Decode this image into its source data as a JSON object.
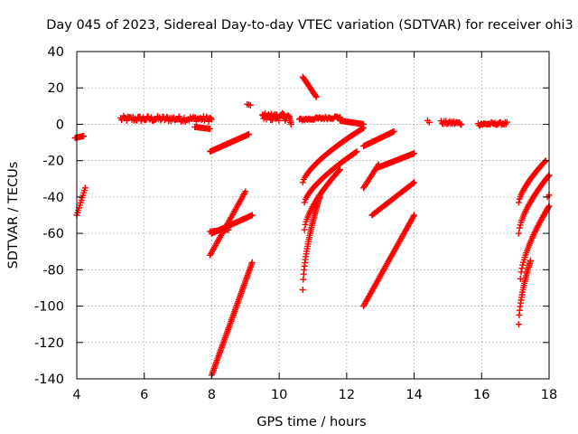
{
  "chart_data": {
    "type": "scatter",
    "title": "Day 045 of 2023, Sidereal Day-to-day VTEC variation (SDTVAR) for receiver ohi3",
    "xlabel": "GPS time / hours",
    "ylabel": "SDTVAR / TECUs",
    "xlim": [
      4,
      18
    ],
    "ylim": [
      -140,
      40
    ],
    "xticks": [
      4,
      6,
      8,
      10,
      12,
      14,
      16,
      18
    ],
    "yticks": [
      -140,
      -120,
      -100,
      -80,
      -60,
      -40,
      -20,
      0,
      20,
      40
    ],
    "grid": true,
    "marker": "plus",
    "color": "#ff0000",
    "segments": [
      {
        "x0": 3.95,
        "y0": -7.5,
        "x1": 4.2,
        "y1": -6.5,
        "n": 10
      },
      {
        "x0": 4.0,
        "y0": -50,
        "x1": 4.25,
        "y1": -35,
        "n": 12
      },
      {
        "x0": 5.3,
        "y0": 3,
        "x1": 8.0,
        "y1": 3,
        "n": 90,
        "jitter": 3
      },
      {
        "x0": 7.5,
        "y0": -1.5,
        "x1": 7.95,
        "y1": -2.5,
        "n": 14
      },
      {
        "x0": 7.95,
        "y0": -15,
        "x1": 9.1,
        "y1": -5.5,
        "n": 40
      },
      {
        "x0": 8.0,
        "y0": -138,
        "x1": 9.2,
        "y1": -76,
        "n": 70
      },
      {
        "x0": 7.95,
        "y0": -72,
        "x1": 9.0,
        "y1": -37,
        "n": 40
      },
      {
        "x0": 8.0,
        "y0": -60,
        "x1": 9.2,
        "y1": -50,
        "n": 40
      },
      {
        "x0": 7.95,
        "y0": -59,
        "x1": 8.5,
        "y1": -58,
        "n": 14
      },
      {
        "x0": 9.05,
        "y0": 11,
        "x1": 9.15,
        "y1": 10.5,
        "n": 3
      },
      {
        "x0": 9.5,
        "y0": 4,
        "x1": 10.3,
        "y1": 4,
        "n": 40,
        "jitter": 4
      },
      {
        "x0": 10.6,
        "y0": 2.5,
        "x1": 11.8,
        "y1": 4,
        "n": 40,
        "jitter": 1.5
      },
      {
        "x0": 10.3,
        "y0": 4,
        "x1": 10.35,
        "y1": 0,
        "n": 5
      },
      {
        "x0": 10.7,
        "y0": 26,
        "x1": 11.1,
        "y1": 15,
        "n": 18
      },
      {
        "x0": 11.8,
        "y0": 2,
        "x1": 12.5,
        "y1": 0,
        "n": 22
      },
      {
        "x0": 10.7,
        "y0": -32,
        "x1": 12.5,
        "y1": -2,
        "n": 60,
        "curve": 0.7
      },
      {
        "x0": 10.75,
        "y0": -43,
        "x1": 12.3,
        "y1": -15,
        "n": 55,
        "curve": 0.7
      },
      {
        "x0": 10.75,
        "y0": -58,
        "x1": 11.8,
        "y1": -25,
        "n": 45,
        "curve": 0.65
      },
      {
        "x0": 10.7,
        "y0": -91,
        "x1": 11.2,
        "y1": -40,
        "n": 40,
        "curve": 0.6
      },
      {
        "x0": 12.5,
        "y0": -12,
        "x1": 13.4,
        "y1": -4,
        "n": 32
      },
      {
        "x0": 12.5,
        "y0": -35,
        "x1": 12.95,
        "y1": -22,
        "n": 18
      },
      {
        "x0": 12.9,
        "y0": -24,
        "x1": 14.0,
        "y1": -16,
        "n": 40
      },
      {
        "x0": 12.75,
        "y0": -50,
        "x1": 14.0,
        "y1": -32,
        "n": 45
      },
      {
        "x0": 12.5,
        "y0": -100,
        "x1": 14.0,
        "y1": -50,
        "n": 65
      },
      {
        "x0": 14.4,
        "y0": 2,
        "x1": 14.45,
        "y1": 1,
        "n": 2
      },
      {
        "x0": 14.8,
        "y0": 1,
        "x1": 15.4,
        "y1": 0.5,
        "n": 22,
        "jitter": 2
      },
      {
        "x0": 15.9,
        "y0": 0,
        "x1": 16.75,
        "y1": 0.5,
        "n": 32,
        "jitter": 1.5
      },
      {
        "x0": 17.1,
        "y0": -43,
        "x1": 17.9,
        "y1": -20,
        "n": 35,
        "curve": 0.7
      },
      {
        "x0": 17.1,
        "y0": -60,
        "x1": 18.0,
        "y1": -28,
        "n": 40,
        "curve": 0.65
      },
      {
        "x0": 17.15,
        "y0": -85,
        "x1": 18.0,
        "y1": -45,
        "n": 40,
        "curve": 0.65
      },
      {
        "x0": 17.1,
        "y0": -110,
        "x1": 17.45,
        "y1": -75,
        "n": 26,
        "curve": 0.6
      },
      {
        "x0": 17.95,
        "y0": -40,
        "x1": 18.0,
        "y1": -39,
        "n": 2
      }
    ]
  }
}
